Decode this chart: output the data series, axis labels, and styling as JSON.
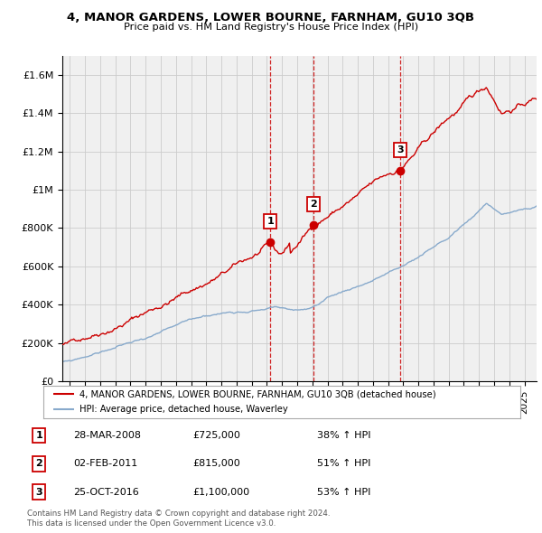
{
  "title": "4, MANOR GARDENS, LOWER BOURNE, FARNHAM, GU10 3QB",
  "subtitle": "Price paid vs. HM Land Registry's House Price Index (HPI)",
  "ylabel_ticks": [
    "£0",
    "£200K",
    "£400K",
    "£600K",
    "£800K",
    "£1M",
    "£1.2M",
    "£1.4M",
    "£1.6M"
  ],
  "ytick_values": [
    0,
    200000,
    400000,
    600000,
    800000,
    1000000,
    1200000,
    1400000,
    1600000
  ],
  "ylim": [
    0,
    1700000
  ],
  "xlim_start": 1994.5,
  "xlim_end": 2025.8,
  "sale_years": [
    2008.24,
    2011.09,
    2016.81
  ],
  "sale_prices": [
    725000,
    815000,
    1100000
  ],
  "sale_labels": [
    "1",
    "2",
    "3"
  ],
  "legend_red": "4, MANOR GARDENS, LOWER BOURNE, FARNHAM, GU10 3QB (detached house)",
  "legend_blue": "HPI: Average price, detached house, Waverley",
  "footer1": "Contains HM Land Registry data © Crown copyright and database right 2024.",
  "footer2": "This data is licensed under the Open Government Licence v3.0.",
  "red_color": "#cc0000",
  "blue_color": "#88aacc",
  "grid_color": "#cccccc",
  "bg_color": "#ffffff",
  "plot_bg": "#f0f0f0"
}
